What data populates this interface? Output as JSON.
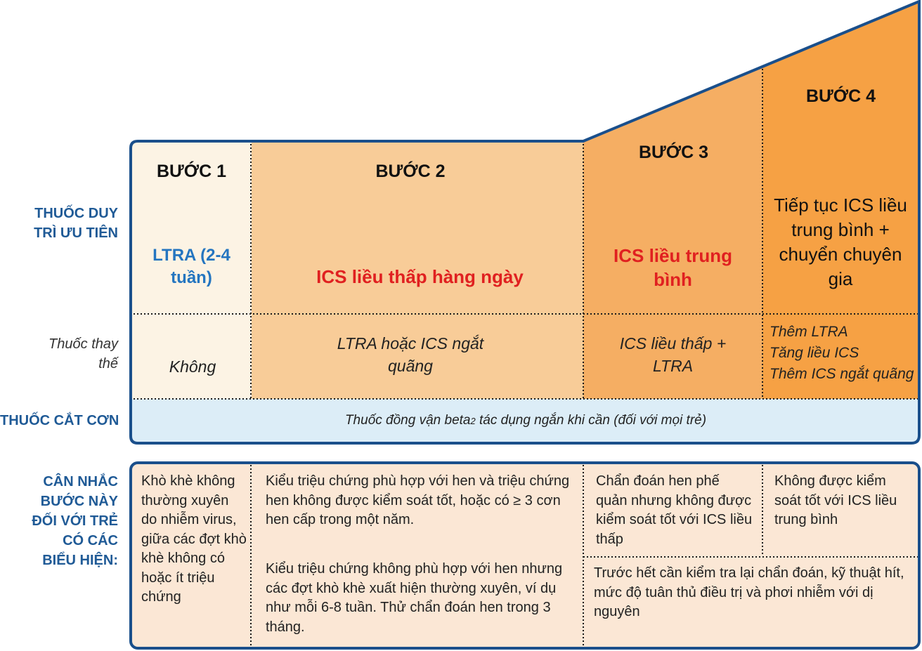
{
  "left_labels": {
    "controller": "THUỐC DUY TRÌ ƯU TIÊN",
    "alternative": "Thuốc thay thế",
    "reliever": "THUỐC CẮT CƠN",
    "consider": "CÂN NHẮC BƯỚC NÀY ĐỐI VỚI TRẺ CÓ CÁC BIỂU HIỆN:"
  },
  "steps": [
    {
      "title": "BƯỚC 1",
      "preferred": "LTRA (2-4 tuần)",
      "alternative": "Không",
      "consider": "Khò khè không thường xuyên do nhiễm virus, giữa các đợt khò khè không có hoặc ít triệu chứng"
    },
    {
      "title": "BƯỚC 2",
      "preferred": "ICS liều thấp hàng ngày",
      "alternative": "LTRA hoặc ICS ngắt quãng",
      "consider_1": "Kiểu triệu chứng phù hợp với hen và triệu chứng hen không được kiểm soát tốt, hoặc có ≥ 3 cơn hen cấp trong một năm.",
      "consider_2": "Kiểu triệu chứng không phù hợp với hen nhưng các đợt khò khè xuất hiện thường xuyên, ví dụ như mỗi 6-8 tuần. Thử chẩn đoán hen trong 3 tháng."
    },
    {
      "title": "BƯỚC 3",
      "preferred": "ICS liều trung bình",
      "alternative": "ICS liều thấp + LTRA",
      "consider": "Chẩn đoán hen phế quản nhưng không được kiểm soát tốt với ICS liều thấp"
    },
    {
      "title": "BƯỚC 4",
      "preferred": "Tiếp tục ICS liều trung bình + chuyển chuyên gia",
      "alternative": [
        "Thêm LTRA",
        "Tăng liều ICS",
        "Thêm ICS ngắt quãng"
      ],
      "consider": "Không được kiểm soát tốt với ICS liều trung bình"
    }
  ],
  "reliever": {
    "before": "Thuốc đồng vận beta",
    "sub": "2",
    "after": " tác dụng ngắn khi cần (đối với mọi trẻ)"
  },
  "steps_3_4_note": "Trước hết cần kiểm tra lại chẩn đoán, kỹ thuật hít, mức độ tuân thủ điều trị và phơi nhiễm với dị nguyên",
  "colors": {
    "frame": "#1a4f8b",
    "step1": "#fcf3e4",
    "step2": "#f8cc98",
    "step3": "#f5ae63",
    "step4": "#f6a144",
    "reliever": "#dcedf7",
    "consider_bg": "#fbe7d5",
    "label_blue": "#1f5a96",
    "red": "#e02020",
    "ltra_blue": "#2475c0"
  }
}
